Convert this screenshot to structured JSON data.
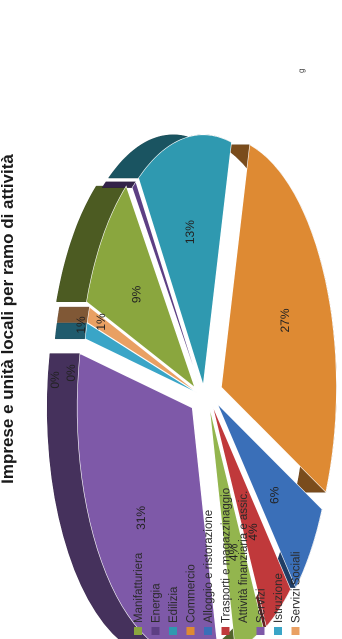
{
  "title": "Imprese e unità locali per ramo di attività",
  "top_note": "g",
  "chart_data": {
    "type": "pie",
    "title": "Imprese e unità locali per ramo di attività",
    "categories": [
      "Manifatturiera",
      "Energia",
      "Edilizia",
      "Commercio",
      "Alloggio e ristorazione",
      "Trasporti e magazzinaggio",
      "Attività finanziaria e assic.",
      "Servizi",
      "Istruzione",
      "Servizi Sociali"
    ],
    "values": [
      9,
      0,
      13,
      27,
      6,
      4,
      4,
      31,
      1,
      1
    ],
    "pct_labels": [
      "9%",
      "0%",
      "13%",
      "27%",
      "6%",
      "4%",
      "4%",
      "31%",
      "1%",
      "1%"
    ],
    "small_labels": [
      "0%",
      "1%",
      "0%",
      "1%"
    ],
    "colors": [
      "#8aa63e",
      "#5d3f84",
      "#2f99b0",
      "#de8a33",
      "#3a6fb8",
      "#c0393b",
      "#93b54e",
      "#7e59a8",
      "#3aa5c7",
      "#e9a063"
    ],
    "legend_position": "right",
    "view": "3d-exploded, rotated -90°"
  }
}
